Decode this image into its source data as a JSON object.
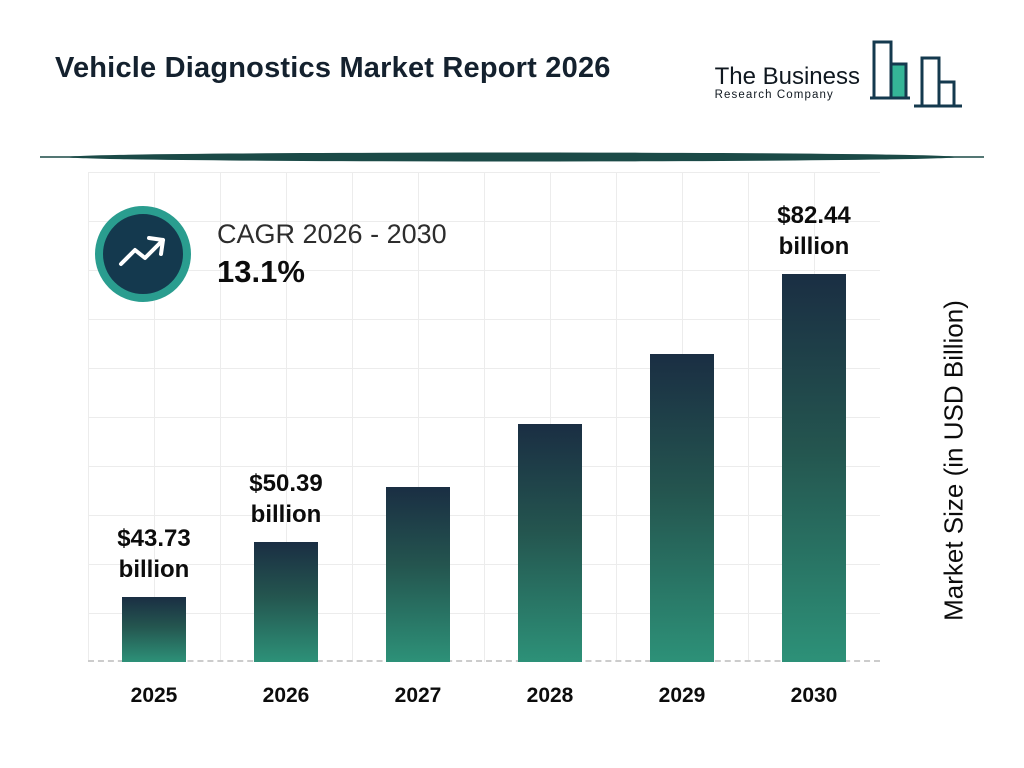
{
  "header": {
    "title": "Vehicle Diagnostics Market Report 2026",
    "logo": {
      "line1": "The Business",
      "line2": "Research Company"
    }
  },
  "cagr": {
    "label": "CAGR 2026 - 2030",
    "value": "13.1%"
  },
  "chart_data": {
    "type": "bar",
    "title": "Vehicle Diagnostics Market Report 2026",
    "xlabel": "",
    "ylabel": "Market Size (in USD Billion)",
    "categories": [
      "2025",
      "2026",
      "2027",
      "2028",
      "2029",
      "2030"
    ],
    "values": [
      43.73,
      50.39,
      57.0,
      64.5,
      72.9,
      82.44
    ],
    "value_labels": [
      "$43.73 billion",
      "$50.39 billion",
      "",
      "",
      "",
      "$82.44 billion"
    ],
    "annotation": "CAGR 2026 - 2030 : 13.1%",
    "ylim": [
      36,
      95
    ],
    "grid": true,
    "legend": false,
    "colors": {
      "bar_top": "#1a2e43",
      "bar_bottom": "#2d9178",
      "accent_teal": "#2a9d8f",
      "dark_navy": "#14394e",
      "grid": "#ececec"
    }
  }
}
